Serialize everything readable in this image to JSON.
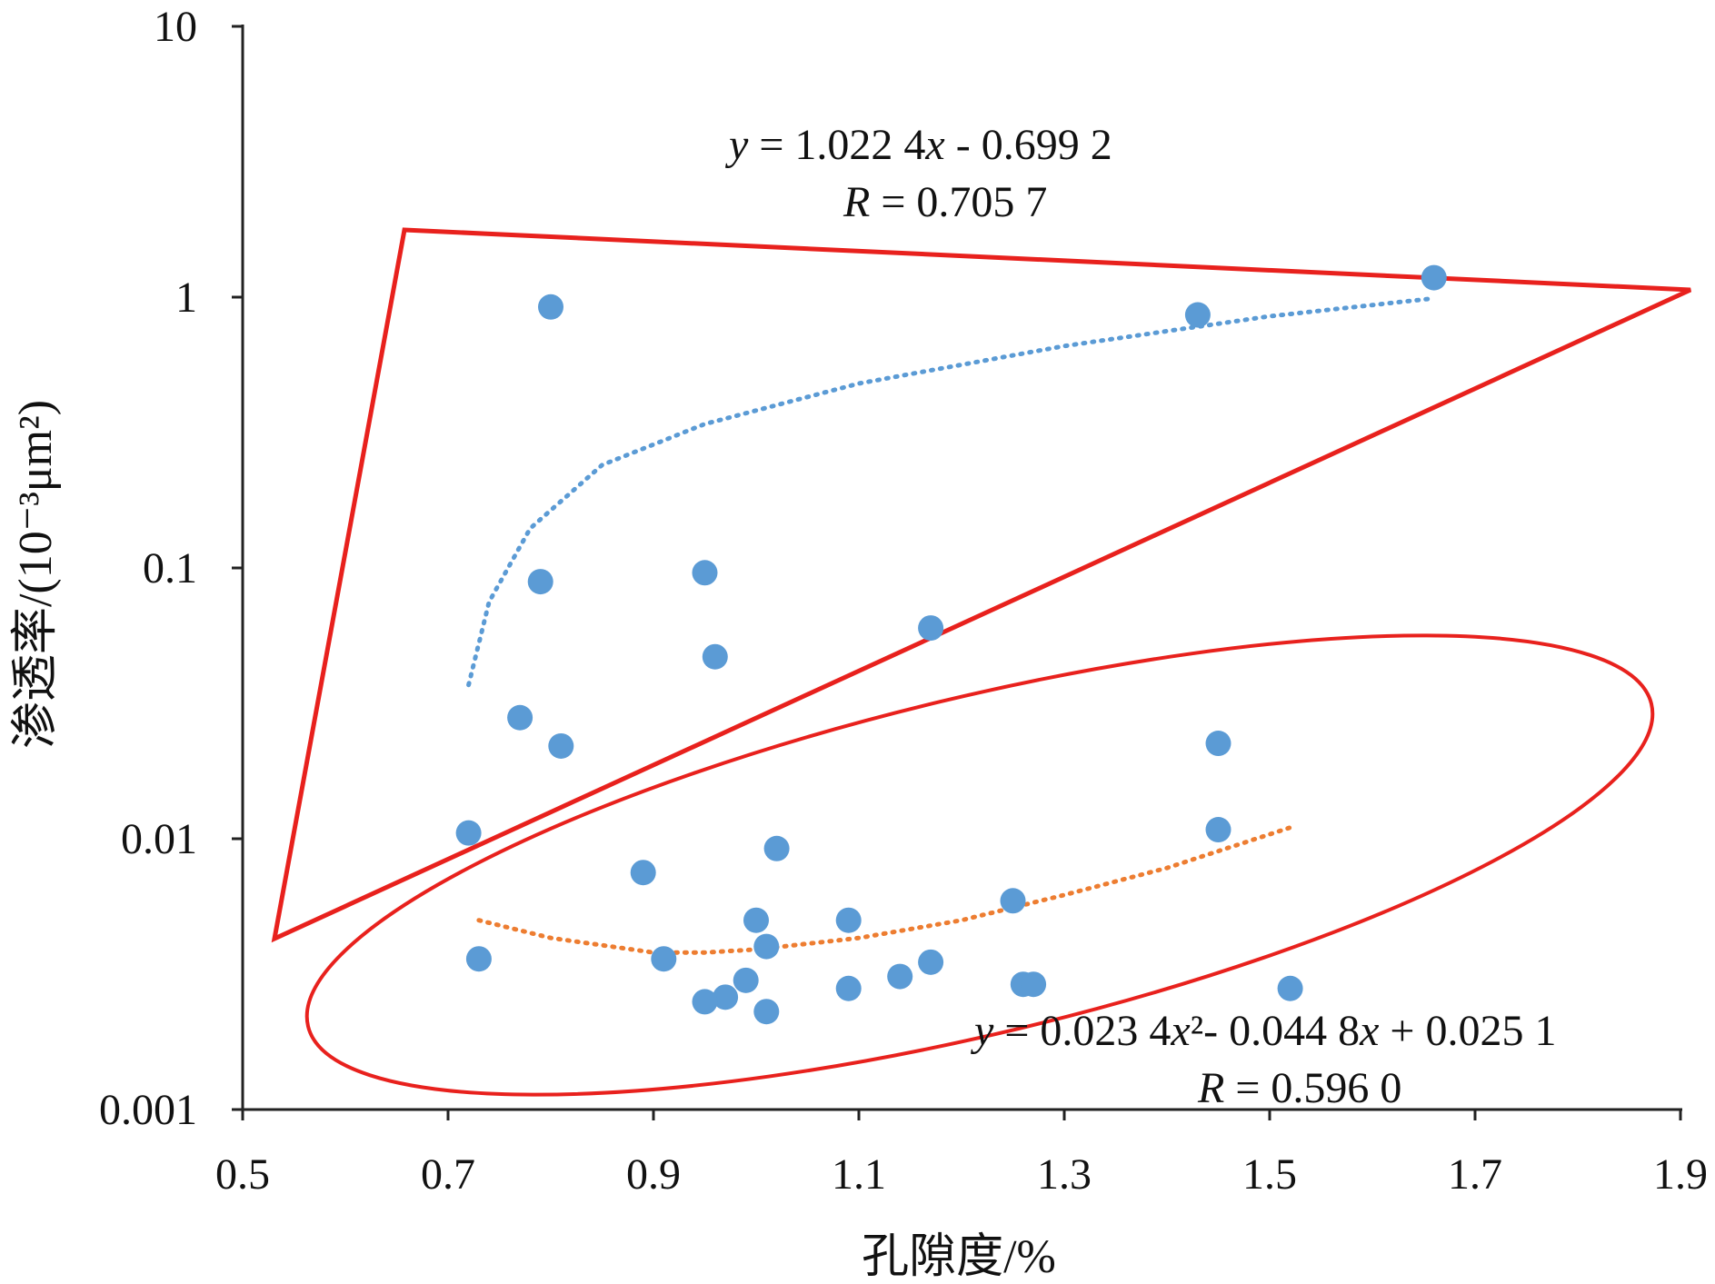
{
  "chart_data": {
    "type": "scatter",
    "xlabel": "孔隙度/%",
    "ylabel": "渗透率/(10⁻³μm²)",
    "x_ticks": [
      "0.5",
      "0.7",
      "0.9",
      "1.1",
      "1.3",
      "1.5",
      "1.7",
      "1.9"
    ],
    "y_ticks": [
      "10",
      "1",
      "0.1",
      "0.01",
      "0.001"
    ],
    "xlim": [
      0.5,
      1.9
    ],
    "ylim": [
      0.001,
      10
    ],
    "y_scale": "log",
    "grid": false,
    "marker_color": "#5b9bd5",
    "points": [
      {
        "x": 0.8,
        "y": 0.92
      },
      {
        "x": 1.66,
        "y": 1.18
      },
      {
        "x": 1.43,
        "y": 0.86
      },
      {
        "x": 0.79,
        "y": 0.089
      },
      {
        "x": 0.95,
        "y": 0.096
      },
      {
        "x": 1.17,
        "y": 0.06
      },
      {
        "x": 0.96,
        "y": 0.047
      },
      {
        "x": 0.77,
        "y": 0.028
      },
      {
        "x": 0.81,
        "y": 0.022
      },
      {
        "x": 1.45,
        "y": 0.0225
      },
      {
        "x": 0.72,
        "y": 0.0105
      },
      {
        "x": 1.45,
        "y": 0.0108
      },
      {
        "x": 1.02,
        "y": 0.0092
      },
      {
        "x": 0.89,
        "y": 0.0075
      },
      {
        "x": 1.25,
        "y": 0.0059
      },
      {
        "x": 1.0,
        "y": 0.005
      },
      {
        "x": 1.09,
        "y": 0.005
      },
      {
        "x": 1.01,
        "y": 0.004
      },
      {
        "x": 0.73,
        "y": 0.0036
      },
      {
        "x": 0.91,
        "y": 0.0036
      },
      {
        "x": 1.17,
        "y": 0.0035
      },
      {
        "x": 1.14,
        "y": 0.0031
      },
      {
        "x": 0.99,
        "y": 0.003
      },
      {
        "x": 1.26,
        "y": 0.0029
      },
      {
        "x": 1.27,
        "y": 0.0029
      },
      {
        "x": 1.09,
        "y": 0.0028
      },
      {
        "x": 1.52,
        "y": 0.0028
      },
      {
        "x": 0.97,
        "y": 0.0026
      },
      {
        "x": 0.95,
        "y": 0.0025
      },
      {
        "x": 1.01,
        "y": 0.0023
      }
    ],
    "trendlines": [
      {
        "color": "#5b9bd5",
        "x_range": [
          0.72,
          1.66
        ],
        "samples": [
          [
            0.72,
            0.037
          ],
          [
            0.74,
            0.075
          ],
          [
            0.78,
            0.14
          ],
          [
            0.85,
            0.24
          ],
          [
            0.95,
            0.34
          ],
          [
            1.1,
            0.48
          ],
          [
            1.3,
            0.66
          ],
          [
            1.5,
            0.85
          ],
          [
            1.66,
            0.99
          ]
        ]
      },
      {
        "color": "#ed7d31",
        "x_range": [
          0.73,
          1.52
        ],
        "samples": [
          [
            0.73,
            0.005
          ],
          [
            0.8,
            0.0043
          ],
          [
            0.9,
            0.0038
          ],
          [
            0.95,
            0.0038
          ],
          [
            1.0,
            0.0039
          ],
          [
            1.1,
            0.0043
          ],
          [
            1.2,
            0.005
          ],
          [
            1.3,
            0.0062
          ],
          [
            1.4,
            0.0078
          ],
          [
            1.52,
            0.011
          ]
        ]
      }
    ],
    "annotations": {
      "eq1": {
        "y": "y",
        "eq": " = 1.022 4",
        "x": "x",
        "rest": " - 0.699 2"
      },
      "r1": {
        "r": "R",
        "rest": " = 0.705 7"
      },
      "eq2": {
        "y": "y",
        "eq": " = 0.023 4",
        "x": "x",
        "sq": "²",
        "mid": "- 0.044 8",
        "x2": "x",
        "rest": " + 0.025 1"
      },
      "r2": {
        "r": "R",
        "rest": " = 0.596 0"
      }
    },
    "highlight_color": "#e8211d"
  }
}
